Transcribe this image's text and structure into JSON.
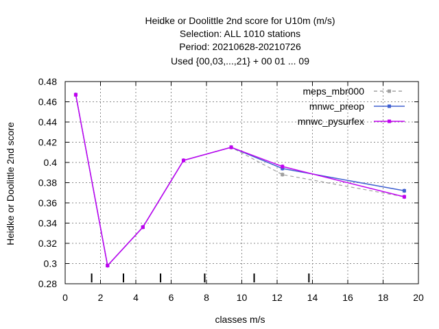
{
  "chart_data": {
    "type": "line",
    "title_lines": [
      "Heidke or Doolittle 2nd score  for U10m (m/s)",
      "Selection: ALL    1010 stations",
      "Period: 20210628-20210726",
      "Used {00,03,...,21} + 00 01 ... 09"
    ],
    "xlabel": "classes m/s",
    "ylabel": "Heidke or Doolittle 2nd score",
    "xlim": [
      0,
      20
    ],
    "ylim": [
      0.28,
      0.48
    ],
    "x_ticks": [
      "0",
      "2",
      "4",
      "6",
      "8",
      "10",
      "12",
      "14",
      "16",
      "18",
      "20"
    ],
    "y_ticks": [
      "0.28",
      "0.3",
      "0.32",
      "0.34",
      "0.36",
      "0.38",
      "0.4",
      "0.42",
      "0.44",
      "0.46",
      "0.48"
    ],
    "grid": true,
    "legend_position": "top-right",
    "class_bounds": [
      1.5,
      3.3,
      5.4,
      7.9,
      10.7,
      13.8
    ],
    "series": [
      {
        "name": "meps_mbr000",
        "color": "#a0a0a0",
        "dash": true,
        "x": [
          0.6,
          2.4,
          4.4,
          6.7,
          9.4,
          12.3,
          19.2
        ],
        "values": [
          0.467,
          0.298,
          0.336,
          0.402,
          0.415,
          0.388,
          0.366
        ]
      },
      {
        "name": "mnwc_preop",
        "color": "#4060d0",
        "dash": false,
        "x": [
          0.6,
          2.4,
          4.4,
          6.7,
          9.4,
          12.3,
          19.2
        ],
        "values": [
          0.467,
          0.298,
          0.336,
          0.402,
          0.415,
          0.394,
          0.372
        ]
      },
      {
        "name": "mnwc_pysurfex",
        "color": "#c000f0",
        "dash": false,
        "x": [
          0.6,
          2.4,
          4.4,
          6.7,
          9.4,
          12.3,
          19.2
        ],
        "values": [
          0.467,
          0.298,
          0.336,
          0.402,
          0.415,
          0.396,
          0.366
        ]
      }
    ]
  }
}
